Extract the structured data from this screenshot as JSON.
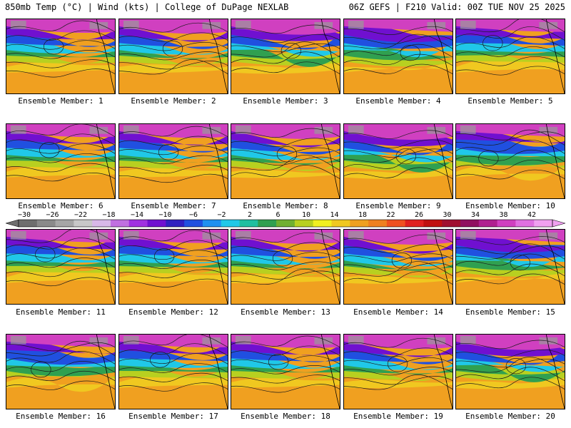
{
  "header": {
    "left": "850mb Temp (°C) | Wind (kts) | College of DuPage NEXLAB",
    "right": "06Z GEFS | F210 Valid: 00Z TUE NOV 25 2025"
  },
  "members": [
    {
      "label": "Ensemble Member: 1"
    },
    {
      "label": "Ensemble Member: 2"
    },
    {
      "label": "Ensemble Member: 3"
    },
    {
      "label": "Ensemble Member: 4"
    },
    {
      "label": "Ensemble Member: 5"
    },
    {
      "label": "Ensemble Member: 6"
    },
    {
      "label": "Ensemble Member: 7"
    },
    {
      "label": "Ensemble Member: 8"
    },
    {
      "label": "Ensemble Member: 9"
    },
    {
      "label": "Ensemble Member: 10"
    },
    {
      "label": "Ensemble Member: 11"
    },
    {
      "label": "Ensemble Member: 12"
    },
    {
      "label": "Ensemble Member: 13"
    },
    {
      "label": "Ensemble Member: 14"
    },
    {
      "label": "Ensemble Member: 15"
    },
    {
      "label": "Ensemble Member: 16"
    },
    {
      "label": "Ensemble Member: 17"
    },
    {
      "label": "Ensemble Member: 18"
    },
    {
      "label": "Ensemble Member: 19"
    },
    {
      "label": "Ensemble Member: 20"
    }
  ],
  "colorbar": {
    "ticks": [
      "−30",
      "−26",
      "−22",
      "−18",
      "−14",
      "−10",
      "−6",
      "−2",
      "2",
      "6",
      "10",
      "14",
      "18",
      "22",
      "26",
      "30",
      "34",
      "38",
      "42"
    ],
    "colors": [
      "#6e6e6e",
      "#8a8a8a",
      "#a6a6a6",
      "#c8c8c8",
      "#d8b8e8",
      "#c070e0",
      "#a030e0",
      "#7010d0",
      "#3020c0",
      "#2050e0",
      "#2090f0",
      "#20c8e8",
      "#20c0a0",
      "#30a050",
      "#70b030",
      "#b8d020",
      "#f0f020",
      "#f0c820",
      "#f0a020",
      "#f08020",
      "#f05020",
      "#e02020",
      "#c01010",
      "#a01030",
      "#901060",
      "#b02090",
      "#d040c0",
      "#e070e0",
      "#f0a0f0"
    ]
  }
}
